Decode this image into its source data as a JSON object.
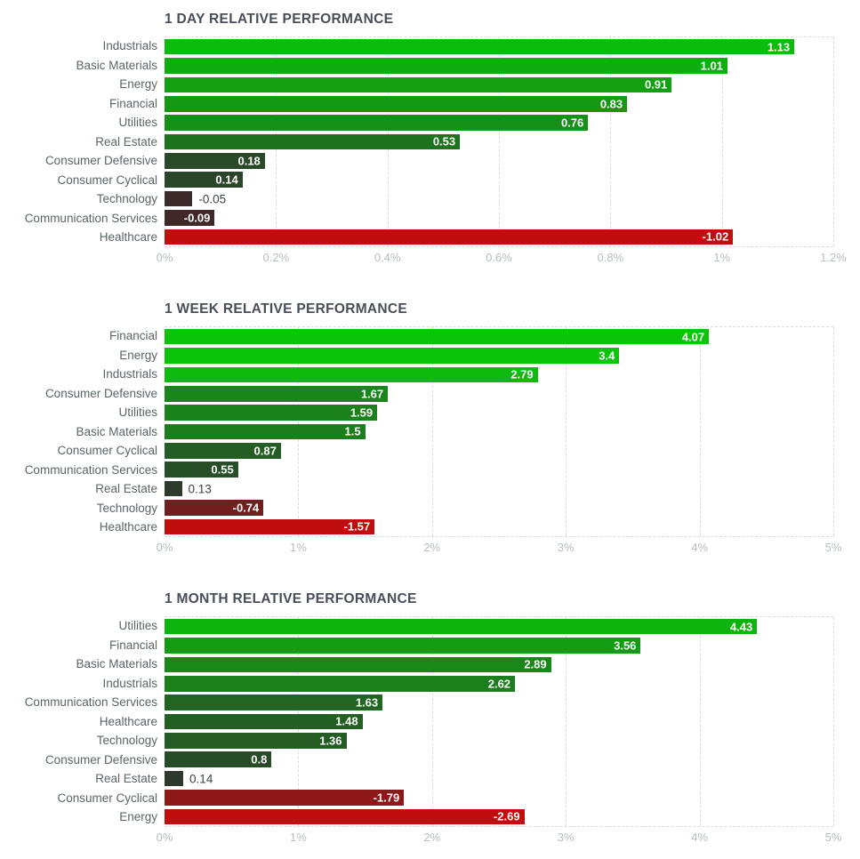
{
  "style": {
    "title_color": "#474e57",
    "label_color": "#5b6566",
    "tick_color": "#b6bdbd",
    "grid_color": "#d9dcdc",
    "value_inside_color": "#ffffff",
    "value_outside_color": "#3d4242",
    "positive_bright": "#0ac40a",
    "positive_dark": "#2e352e",
    "negative_bright": "#c00d0d",
    "negative_dark": "#382a2a"
  },
  "chart_data": [
    {
      "type": "bar",
      "orientation": "horizontal",
      "title": "1 DAY RELATIVE PERFORMANCE",
      "categories": [
        "Industrials",
        "Basic Materials",
        "Energy",
        "Financial",
        "Utilities",
        "Real Estate",
        "Consumer Defensive",
        "Consumer Cyclical",
        "Technology",
        "Communication Services",
        "Healthcare"
      ],
      "values": [
        1.13,
        1.01,
        0.91,
        0.83,
        0.76,
        0.53,
        0.18,
        0.14,
        -0.05,
        -0.09,
        -1.02
      ],
      "unit": "%",
      "xlabel": "",
      "ylabel": "",
      "x_ticks": [
        "0%",
        "0.2%",
        "0.4%",
        "0.6%",
        "0.8%",
        "1%",
        "1.2%"
      ],
      "xlim": [
        0,
        1.2
      ],
      "color_scale_max": 1.2,
      "bars_show_absolute_value_of_negatives": true,
      "value_labels": "inside-right, outside for tiny bars",
      "grid": "dashed-vertical",
      "legend": "none",
      "sorted": "descending"
    },
    {
      "type": "bar",
      "orientation": "horizontal",
      "title": "1 WEEK RELATIVE PERFORMANCE",
      "categories": [
        "Financial",
        "Energy",
        "Industrials",
        "Consumer Defensive",
        "Utilities",
        "Basic Materials",
        "Consumer Cyclical",
        "Communication Services",
        "Real Estate",
        "Technology",
        "Healthcare"
      ],
      "values": [
        4.07,
        3.4,
        2.79,
        1.67,
        1.59,
        1.5,
        0.87,
        0.55,
        0.13,
        -0.74,
        -1.57
      ],
      "unit": "%",
      "xlabel": "",
      "ylabel": "",
      "x_ticks": [
        "0%",
        "1%",
        "2%",
        "3%",
        "4%",
        "5%"
      ],
      "xlim": [
        0,
        5
      ],
      "color_scale_max": 3,
      "bars_show_absolute_value_of_negatives": true,
      "value_labels": "inside-right, outside for tiny bars",
      "grid": "dashed-vertical",
      "legend": "none",
      "sorted": "descending"
    },
    {
      "type": "bar",
      "orientation": "horizontal",
      "title": "1 MONTH RELATIVE PERFORMANCE",
      "categories": [
        "Utilities",
        "Financial",
        "Basic Materials",
        "Industrials",
        "Communication Services",
        "Healthcare",
        "Technology",
        "Consumer Defensive",
        "Real Estate",
        "Consumer Cyclical",
        "Energy"
      ],
      "values": [
        4.43,
        3.56,
        2.89,
        2.62,
        1.63,
        1.48,
        1.36,
        0.8,
        0.14,
        -1.79,
        -2.69
      ],
      "unit": "%",
      "xlabel": "",
      "ylabel": "",
      "x_ticks": [
        "0%",
        "1%",
        "2%",
        "3%",
        "4%",
        "5%"
      ],
      "xlim": [
        0,
        5
      ],
      "color_scale_max": 5,
      "bars_show_absolute_value_of_negatives": true,
      "value_labels": "inside-right, outside for tiny bars",
      "grid": "dashed-vertical",
      "legend": "none",
      "sorted": "descending"
    }
  ]
}
